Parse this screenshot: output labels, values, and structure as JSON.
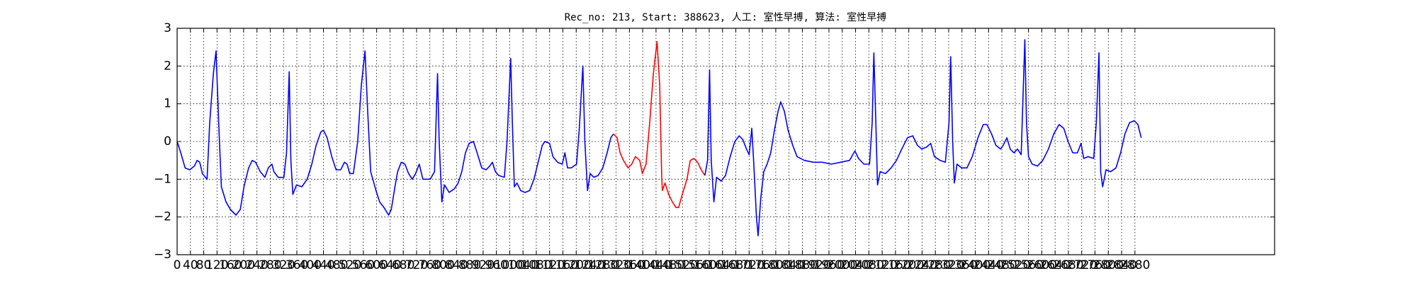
{
  "chart_data": {
    "type": "line",
    "title": "Rec_no: 213, Start: 388623, 人工: 室性早搏, 算法: 室性早搏",
    "xlim": [
      0,
      3300
    ],
    "xticks": [
      0,
      40,
      80,
      120,
      160,
      200,
      240,
      280,
      320,
      360,
      400,
      440,
      480,
      520,
      560,
      600,
      640,
      680,
      720,
      760,
      800,
      840,
      880,
      920,
      960,
      1000,
      1040,
      1080,
      1120,
      1160,
      1200,
      1240,
      1280,
      1320,
      1360,
      1400,
      1440,
      1480,
      1520,
      1560,
      1600,
      1640,
      1680,
      1720,
      1760,
      1800,
      1840,
      1880,
      1920,
      1960,
      2000,
      2040,
      2080,
      2120,
      2160,
      2200,
      2240,
      2280,
      2320,
      2360,
      2400,
      2440,
      2480,
      2520,
      2560,
      2600,
      2640,
      2680,
      2720,
      2760,
      2800,
      2840,
      2880
    ],
    "ylim": [
      -3,
      3
    ],
    "yticks": [
      {
        "value": -3,
        "label": "−3"
      },
      {
        "value": -2,
        "label": "−2"
      },
      {
        "value": -1,
        "label": "−1"
      },
      0,
      1,
      2,
      3
    ],
    "grid": true,
    "series": [
      {
        "color": "#0000ff",
        "x": [
          0,
          11,
          24,
          38,
          52,
          60,
          68,
          76,
          90,
          98,
          109,
          117,
          125,
          133,
          147,
          160,
          177,
          190,
          201,
          215,
          226,
          236,
          250,
          264,
          274,
          285,
          291,
          304,
          321,
          329,
          337,
          342,
          348,
          359,
          375,
          391,
          405,
          418,
          432,
          440,
          451,
          465,
          478,
          492,
          503,
          511,
          519,
          530,
          543,
          554,
          565,
          573,
          582,
          598,
          609,
          622,
          636,
          644,
          655,
          663,
          674,
          685,
          696,
          707,
          717,
          728,
          739,
          761,
          774,
          783,
          788,
          796,
          804,
          818,
          834,
          845,
          856,
          867,
          878,
          891,
          902,
          916,
          929,
          940,
          948,
          957,
          967,
          984,
          992,
          1003,
          1008,
          1014,
          1022,
          1033,
          1046,
          1060,
          1073,
          1087,
          1098,
          1106,
          1120,
          1130,
          1144,
          1158,
          1166,
          1174,
          1185,
          1201,
          1209,
          1220,
          1226,
          1234,
          1242,
          1253,
          1266,
          1280,
          1293,
          1304,
          1312
        ],
        "values": [
          0.0,
          -0.3,
          -0.7,
          -0.75,
          -0.65,
          -0.5,
          -0.55,
          -0.85,
          -1.0,
          0.5,
          1.8,
          2.4,
          0.5,
          -1.2,
          -1.6,
          -1.8,
          -1.95,
          -1.8,
          -1.2,
          -0.7,
          -0.5,
          -0.55,
          -0.8,
          -0.95,
          -0.7,
          -0.6,
          -0.8,
          -0.95,
          -0.95,
          -0.3,
          1.85,
          -0.5,
          -1.4,
          -1.15,
          -1.2,
          -1.0,
          -0.6,
          -0.1,
          0.25,
          0.3,
          0.1,
          -0.4,
          -0.75,
          -0.75,
          -0.55,
          -0.6,
          -0.85,
          -0.85,
          0.0,
          1.5,
          2.4,
          0.8,
          -0.8,
          -1.3,
          -1.6,
          -1.75,
          -1.95,
          -1.8,
          -1.2,
          -0.8,
          -0.55,
          -0.6,
          -0.85,
          -1.0,
          -0.85,
          -0.6,
          -1.0,
          -1.0,
          -0.8,
          1.8,
          0.0,
          -1.6,
          -1.15,
          -1.35,
          -1.25,
          -1.1,
          -0.8,
          -0.3,
          -0.05,
          0.0,
          -0.3,
          -0.7,
          -0.75,
          -0.65,
          -0.55,
          -0.8,
          -0.9,
          -0.95,
          0.0,
          2.2,
          0.5,
          -1.2,
          -1.1,
          -1.3,
          -1.35,
          -1.3,
          -1.0,
          -0.5,
          -0.1,
          0.0,
          -0.05,
          -0.4,
          -0.55,
          -0.6,
          -0.3,
          -0.7,
          -0.7,
          -0.6,
          0.3,
          2.0,
          0.0,
          -1.3,
          -0.85,
          -0.95,
          -0.9,
          -0.7,
          -0.3,
          0.1,
          0.2
        ]
      },
      {
        "color": "#ff0000",
        "x": [
          1312,
          1323,
          1332,
          1342,
          1356,
          1367,
          1378,
          1391,
          1399,
          1410,
          1421,
          1432,
          1443,
          1451,
          1457,
          1459,
          1467,
          1478,
          1489,
          1500,
          1508,
          1519,
          1533,
          1543,
          1554,
          1565,
          1576,
          1587
        ],
        "values": [
          0.2,
          0.1,
          -0.3,
          -0.5,
          -0.7,
          -0.6,
          -0.4,
          -0.5,
          -0.85,
          -0.6,
          0.5,
          1.8,
          2.65,
          1.5,
          -0.9,
          -1.3,
          -1.1,
          -1.4,
          -1.6,
          -1.75,
          -1.75,
          -1.4,
          -1.0,
          -0.5,
          -0.45,
          -0.55,
          -0.75,
          -0.9
        ]
      },
      {
        "color": "#0000ff",
        "x": [
          1587,
          1595,
          1601,
          1606,
          1614,
          1622,
          1636,
          1649,
          1663,
          1677,
          1690,
          1701,
          1712,
          1720,
          1728,
          1734,
          1742,
          1747,
          1755,
          1764,
          1774,
          1785,
          1796,
          1807,
          1815,
          1826,
          1837,
          1851,
          1864,
          1886,
          1913,
          1940,
          1967,
          1995,
          2022,
          2038,
          2049,
          2065,
          2082,
          2090,
          2095,
          2101,
          2106,
          2114,
          2130,
          2147,
          2163,
          2179,
          2196,
          2212,
          2226,
          2239,
          2253,
          2266,
          2277,
          2294,
          2310,
          2321,
          2326,
          2332,
          2337,
          2345,
          2359,
          2375,
          2391,
          2408,
          2424,
          2435,
          2449,
          2462,
          2476,
          2484,
          2495,
          2505,
          2516,
          2527,
          2538,
          2549,
          2554,
          2560,
          2571,
          2587,
          2603,
          2620,
          2636,
          2652,
          2666,
          2679,
          2693,
          2707,
          2718,
          2726,
          2739,
          2756,
          2764,
          2772,
          2777,
          2783,
          2793,
          2807,
          2823,
          2837,
          2850,
          2864,
          2878,
          2889,
          2899
        ],
        "values": [
          -0.9,
          -0.5,
          1.9,
          -0.5,
          -1.6,
          -0.95,
          -1.05,
          -0.9,
          -0.4,
          0.0,
          0.15,
          0.05,
          -0.2,
          -0.35,
          0.35,
          -0.6,
          -2.0,
          -2.5,
          -1.5,
          -0.8,
          -0.6,
          -0.3,
          0.3,
          0.8,
          1.05,
          0.8,
          0.3,
          -0.1,
          -0.4,
          -0.5,
          -0.55,
          -0.55,
          -0.6,
          -0.55,
          -0.5,
          -0.25,
          -0.45,
          -0.6,
          -0.6,
          0.5,
          2.35,
          0.5,
          -1.15,
          -0.8,
          -0.85,
          -0.7,
          -0.5,
          -0.2,
          0.1,
          0.15,
          -0.1,
          -0.2,
          -0.15,
          -0.05,
          -0.4,
          -0.5,
          -0.55,
          0.5,
          2.25,
          0.0,
          -1.1,
          -0.6,
          -0.7,
          -0.7,
          -0.4,
          0.1,
          0.45,
          0.45,
          0.2,
          -0.1,
          -0.2,
          -0.1,
          0.1,
          -0.2,
          -0.3,
          -0.2,
          -0.35,
          2.7,
          0.5,
          -0.4,
          -0.6,
          -0.65,
          -0.5,
          -0.2,
          0.2,
          0.45,
          0.35,
          0.0,
          -0.3,
          -0.3,
          -0.05,
          -0.45,
          -0.4,
          -0.45,
          0.5,
          2.35,
          -0.8,
          -1.2,
          -0.75,
          -0.8,
          -0.7,
          -0.3,
          0.2,
          0.5,
          0.55,
          0.45,
          0.1
        ]
      }
    ]
  }
}
